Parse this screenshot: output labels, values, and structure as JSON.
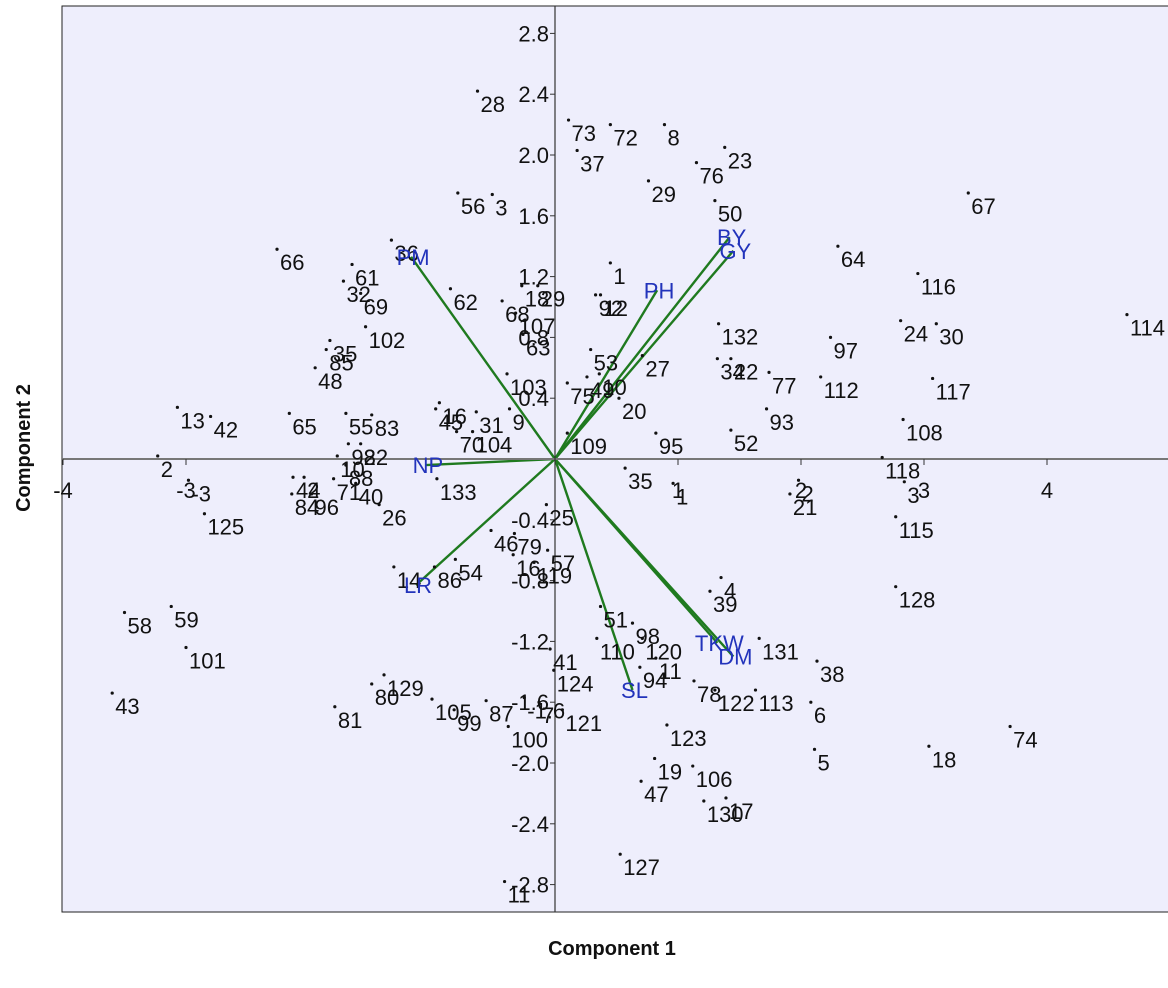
{
  "chart_data": {
    "type": "scatter",
    "subtype": "pca-biplot",
    "title": "",
    "xlabel": "Component 1",
    "ylabel": "Component 2",
    "xlim": [
      -4,
      4.9
    ],
    "ylim": [
      -2.95,
      3.0
    ],
    "x_ticks": [
      "-4",
      "-3",
      "1",
      "2",
      "3",
      "4"
    ],
    "y_ticks": [
      "2.8",
      "2.4",
      "2.0",
      "1.6",
      "1.2",
      "0.8",
      "0.4",
      "-0.4",
      "-0.8",
      "-1.2",
      "-1.6",
      "-2.0",
      "-2.4",
      "-2.8"
    ],
    "grid": false,
    "colors": {
      "background": "#eeeefc",
      "loadings": "#1f7a1f",
      "loading_labels": "#2233bb",
      "points": "#111111"
    },
    "loadings": [
      {
        "name": "PM",
        "x": -1.17,
        "y": 1.33
      },
      {
        "name": "BY",
        "x": 1.42,
        "y": 1.46
      },
      {
        "name": "GY",
        "x": 1.45,
        "y": 1.37
      },
      {
        "name": "PH",
        "x": 0.83,
        "y": 1.11
      },
      {
        "name": "NP",
        "x": -1.05,
        "y": -0.04
      },
      {
        "name": "LR",
        "x": -1.13,
        "y": -0.83
      },
      {
        "name": "TKW",
        "x": 1.32,
        "y": -1.21
      },
      {
        "name": "DM",
        "x": 1.45,
        "y": -1.3
      },
      {
        "name": "SL",
        "x": 0.63,
        "y": -1.52
      }
    ],
    "points": [
      {
        "label": "28",
        "x": -0.63,
        "y": 2.42
      },
      {
        "label": "73",
        "x": 0.11,
        "y": 2.23
      },
      {
        "label": "37",
        "x": 0.18,
        "y": 2.03
      },
      {
        "label": "72",
        "x": 0.45,
        "y": 2.2
      },
      {
        "label": "8",
        "x": 0.89,
        "y": 2.2
      },
      {
        "label": "76",
        "x": 1.15,
        "y": 1.95
      },
      {
        "label": "29",
        "x": 0.76,
        "y": 1.83
      },
      {
        "label": "23",
        "x": 1.38,
        "y": 2.05
      },
      {
        "label": "50",
        "x": 1.3,
        "y": 1.7
      },
      {
        "label": "67",
        "x": 3.36,
        "y": 1.75
      },
      {
        "label": "56",
        "x": -0.79,
        "y": 1.75
      },
      {
        "label": "3",
        "x": -0.51,
        "y": 1.74
      },
      {
        "label": "66",
        "x": -2.26,
        "y": 1.38
      },
      {
        "label": "36",
        "x": -1.33,
        "y": 1.44
      },
      {
        "label": "61",
        "x": -1.65,
        "y": 1.28
      },
      {
        "label": "32",
        "x": -1.72,
        "y": 1.17
      },
      {
        "label": "69",
        "x": -1.58,
        "y": 1.09
      },
      {
        "label": "102",
        "x": -1.54,
        "y": 0.87
      },
      {
        "label": "62",
        "x": -0.85,
        "y": 1.12
      },
      {
        "label": "18",
        "x": -0.27,
        "y": 1.14
      },
      {
        "label": "29",
        "x": -0.14,
        "y": 1.14
      },
      {
        "label": "68",
        "x": -0.43,
        "y": 1.04
      },
      {
        "label": "107",
        "x": -0.32,
        "y": 0.96
      },
      {
        "label": "63",
        "x": -0.26,
        "y": 0.82
      },
      {
        "label": "1",
        "x": 0.45,
        "y": 1.29
      },
      {
        "label": "92",
        "x": 0.33,
        "y": 1.08
      },
      {
        "label": "12",
        "x": 0.37,
        "y": 1.08
      },
      {
        "label": "64",
        "x": 2.3,
        "y": 1.4
      },
      {
        "label": "116",
        "x": 2.95,
        "y": 1.22
      },
      {
        "label": "132",
        "x": 1.33,
        "y": 0.89
      },
      {
        "label": "97",
        "x": 2.24,
        "y": 0.8
      },
      {
        "label": "24",
        "x": 2.81,
        "y": 0.91
      },
      {
        "label": "30",
        "x": 3.1,
        "y": 0.89
      },
      {
        "label": "114",
        "x": 4.65,
        "y": 0.95
      },
      {
        "label": "35",
        "x": -1.83,
        "y": 0.78
      },
      {
        "label": "85",
        "x": -1.86,
        "y": 0.72
      },
      {
        "label": "48",
        "x": -1.95,
        "y": 0.6
      },
      {
        "label": "53",
        "x": 0.29,
        "y": 0.72
      },
      {
        "label": "27",
        "x": 0.71,
        "y": 0.68
      },
      {
        "label": "34",
        "x": 1.32,
        "y": 0.66
      },
      {
        "label": "22",
        "x": 1.43,
        "y": 0.66
      },
      {
        "label": "77",
        "x": 1.74,
        "y": 0.57
      },
      {
        "label": "112",
        "x": 2.16,
        "y": 0.54
      },
      {
        "label": "117",
        "x": 3.07,
        "y": 0.53
      },
      {
        "label": "103",
        "x": -0.39,
        "y": 0.56
      },
      {
        "label": "75",
        "x": 0.1,
        "y": 0.5
      },
      {
        "label": "49",
        "x": 0.26,
        "y": 0.54
      },
      {
        "label": "10",
        "x": 0.36,
        "y": 0.56
      },
      {
        "label": "20",
        "x": 0.52,
        "y": 0.4
      },
      {
        "label": "9",
        "x": -0.37,
        "y": 0.33
      },
      {
        "label": "13",
        "x": -3.07,
        "y": 0.34
      },
      {
        "label": "42",
        "x": -2.8,
        "y": 0.28
      },
      {
        "label": "65",
        "x": -2.16,
        "y": 0.3
      },
      {
        "label": "55",
        "x": -1.7,
        "y": 0.3
      },
      {
        "label": "83",
        "x": -1.49,
        "y": 0.29
      },
      {
        "label": "16",
        "x": -0.94,
        "y": 0.37
      },
      {
        "label": "45",
        "x": -0.97,
        "y": 0.33
      },
      {
        "label": "31",
        "x": -0.64,
        "y": 0.31
      },
      {
        "label": "70",
        "x": -0.8,
        "y": 0.18
      },
      {
        "label": "104",
        "x": -0.67,
        "y": 0.18
      },
      {
        "label": "93",
        "x": 1.72,
        "y": 0.33
      },
      {
        "label": "108",
        "x": 2.83,
        "y": 0.26
      },
      {
        "label": "109",
        "x": 0.1,
        "y": 0.17
      },
      {
        "label": "95",
        "x": 0.82,
        "y": 0.17
      },
      {
        "label": "52",
        "x": 1.43,
        "y": 0.19
      },
      {
        "label": "2",
        "x": -3.23,
        "y": 0.02
      },
      {
        "label": "-3",
        "x": -2.98,
        "y": -0.14
      },
      {
        "label": "92",
        "x": -1.68,
        "y": 0.1
      },
      {
        "label": "82",
        "x": -1.58,
        "y": 0.1
      },
      {
        "label": "10",
        "x": -1.77,
        "y": 0.02
      },
      {
        "label": "88",
        "x": -1.7,
        "y": -0.04
      },
      {
        "label": "71",
        "x": -1.8,
        "y": -0.13
      },
      {
        "label": "40",
        "x": -1.62,
        "y": -0.16
      },
      {
        "label": "44",
        "x": -2.13,
        "y": -0.12
      },
      {
        "label": "2",
        "x": -2.04,
        "y": -0.12
      },
      {
        "label": "84",
        "x": -2.14,
        "y": -0.23
      },
      {
        "label": "96",
        "x": -1.98,
        "y": -0.23
      },
      {
        "label": "26",
        "x": -1.43,
        "y": -0.3
      },
      {
        "label": "133",
        "x": -0.96,
        "y": -0.13
      },
      {
        "label": "125",
        "x": -2.85,
        "y": -0.36
      },
      {
        "label": "35",
        "x": 0.57,
        "y": -0.06
      },
      {
        "label": "1",
        "x": 0.96,
        "y": -0.16
      },
      {
        "label": "2",
        "x": 1.98,
        "y": -0.14
      },
      {
        "label": "21",
        "x": 1.91,
        "y": -0.23
      },
      {
        "label": "118",
        "x": 2.66,
        "y": 0.01
      },
      {
        "label": "3",
        "x": 2.84,
        "y": -0.15
      },
      {
        "label": "115",
        "x": 2.77,
        "y": -0.38
      },
      {
        "label": "25",
        "x": -0.07,
        "y": -0.3
      },
      {
        "label": "46",
        "x": -0.52,
        "y": -0.47
      },
      {
        "label": "79",
        "x": -0.33,
        "y": -0.49
      },
      {
        "label": "16",
        "x": -0.34,
        "y": -0.63
      },
      {
        "label": "57",
        "x": -0.06,
        "y": -0.6
      },
      {
        "label": "119",
        "x": -0.17,
        "y": -0.68
      },
      {
        "label": "14",
        "x": -1.31,
        "y": -0.71
      },
      {
        "label": "86",
        "x": -0.98,
        "y": -0.71
      },
      {
        "label": "54",
        "x": -0.81,
        "y": -0.66
      },
      {
        "label": "4",
        "x": 1.35,
        "y": -0.78
      },
      {
        "label": "39",
        "x": 1.26,
        "y": -0.87
      },
      {
        "label": "128",
        "x": 2.77,
        "y": -0.84
      },
      {
        "label": "58",
        "x": -3.5,
        "y": -1.01
      },
      {
        "label": "59",
        "x": -3.12,
        "y": -0.97
      },
      {
        "label": "101",
        "x": -3.0,
        "y": -1.24
      },
      {
        "label": "51",
        "x": 0.37,
        "y": -0.97
      },
      {
        "label": "98",
        "x": 0.63,
        "y": -1.08
      },
      {
        "label": "110",
        "x": 0.34,
        "y": -1.18
      },
      {
        "label": "120",
        "x": 0.71,
        "y": -1.18
      },
      {
        "label": "11",
        "x": 0.82,
        "y": -1.31
      },
      {
        "label": "94",
        "x": 0.69,
        "y": -1.37
      },
      {
        "label": "131",
        "x": 1.66,
        "y": -1.18
      },
      {
        "label": "38",
        "x": 2.13,
        "y": -1.33
      },
      {
        "label": "41",
        "x": -0.04,
        "y": -1.25
      },
      {
        "label": "124",
        "x": -0.01,
        "y": -1.39
      },
      {
        "label": "80",
        "x": -1.49,
        "y": -1.48
      },
      {
        "label": "129",
        "x": -1.39,
        "y": -1.42
      },
      {
        "label": "81",
        "x": -1.79,
        "y": -1.63
      },
      {
        "label": "43",
        "x": -3.6,
        "y": -1.54
      },
      {
        "label": "105",
        "x": -1.0,
        "y": -1.58
      },
      {
        "label": "99",
        "x": -0.82,
        "y": -1.65
      },
      {
        "label": "87",
        "x": -0.56,
        "y": -1.59
      },
      {
        "label": "-1.6",
        "x": -0.25,
        "y": -1.57
      },
      {
        "label": "7",
        "x": -0.13,
        "y": -1.6
      },
      {
        "label": "121",
        "x": 0.06,
        "y": -1.65
      },
      {
        "label": "100",
        "x": -0.38,
        "y": -1.76
      },
      {
        "label": "78",
        "x": 1.13,
        "y": -1.46
      },
      {
        "label": "122",
        "x": 1.3,
        "y": -1.52
      },
      {
        "label": "113",
        "x": 1.63,
        "y": -1.52
      },
      {
        "label": "6",
        "x": 2.08,
        "y": -1.6
      },
      {
        "label": "123",
        "x": 0.91,
        "y": -1.75
      },
      {
        "label": "74",
        "x": 3.7,
        "y": -1.76
      },
      {
        "label": "18",
        "x": 3.04,
        "y": -1.89
      },
      {
        "label": "5",
        "x": 2.11,
        "y": -1.91
      },
      {
        "label": "19",
        "x": 0.81,
        "y": -1.97
      },
      {
        "label": "106",
        "x": 1.12,
        "y": -2.02
      },
      {
        "label": "47",
        "x": 0.7,
        "y": -2.12
      },
      {
        "label": "130",
        "x": 1.21,
        "y": -2.25
      },
      {
        "label": "17",
        "x": 1.39,
        "y": -2.23
      },
      {
        "label": "127",
        "x": 0.53,
        "y": -2.6
      },
      {
        "label": "11",
        "x": -0.41,
        "y": -2.78
      }
    ]
  }
}
